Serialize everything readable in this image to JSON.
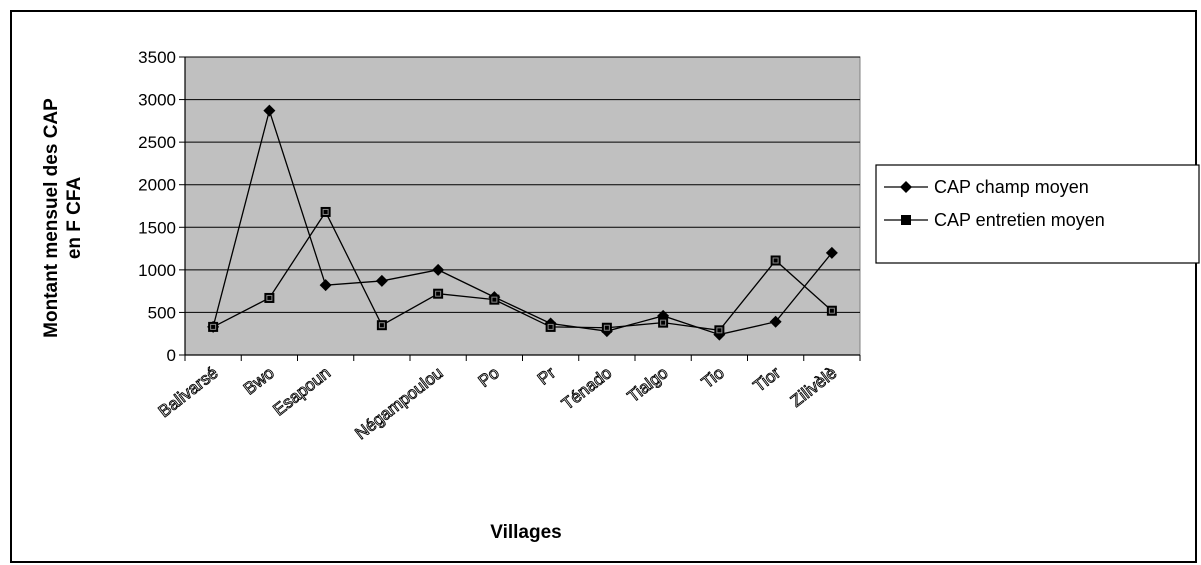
{
  "chart_data": {
    "type": "line",
    "categories": [
      "Balivarsé",
      "Bwo",
      "Esapoun",
      "",
      "Négampoulou",
      "Po",
      "Pr",
      "Ténado",
      "Tialgo",
      "Tio",
      "Tior",
      "Zilivèlè"
    ],
    "series": [
      {
        "name": "CAP champ moyen",
        "marker": "diamond",
        "values": [
          330,
          2870,
          820,
          870,
          1000,
          680,
          370,
          280,
          460,
          240,
          390,
          1200
        ]
      },
      {
        "name": "CAP entretien moyen",
        "marker": "square",
        "values": [
          330,
          670,
          1680,
          350,
          720,
          650,
          330,
          320,
          380,
          290,
          1110,
          520
        ]
      }
    ],
    "xlabel": "Villages",
    "ylabel_lines": [
      "Montant mensuel des CAP",
      "en F CFA"
    ],
    "ylim": [
      0,
      3500
    ],
    "yticks": [
      0,
      500,
      1000,
      1500,
      2000,
      2500,
      3000,
      3500
    ],
    "grid": true,
    "legend_position": "right",
    "colors": {
      "plot_background": "#c0c0c0",
      "line": "#000000",
      "marker": "#000000"
    }
  }
}
